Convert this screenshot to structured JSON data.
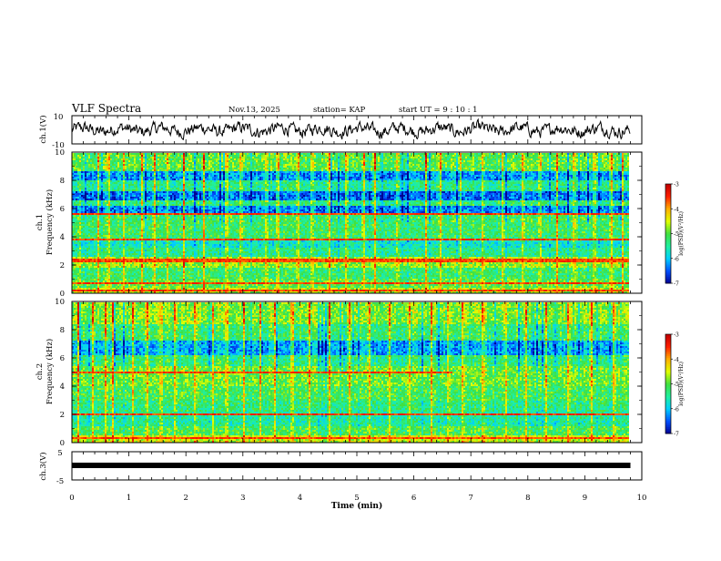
{
  "header": {
    "title": "VLF Spectra",
    "date": "Nov.13, 2025",
    "station": "station= KAP",
    "start": "start  UT =   9  : 10 : 1"
  },
  "chart_data": {
    "type": "heatmap",
    "xlabel": "Time  (min)",
    "xlim": [
      0,
      10
    ],
    "xticks": [
      "0",
      "1",
      "2",
      "3",
      "4",
      "5",
      "6",
      "7",
      "8",
      "9",
      "10"
    ],
    "data_end_min": 9.8,
    "panels": [
      {
        "id": "ch1-waveform",
        "type": "line",
        "ylabel": "ch.1(V)",
        "ylim": [
          -10,
          10
        ],
        "yticks": [
          "10",
          "-10"
        ]
      },
      {
        "id": "ch1-spectrogram",
        "type": "heatmap",
        "ylabel_line1": "ch.1",
        "ylabel_line2": "Frequency  (kHz)",
        "ylim": [
          0,
          10
        ],
        "yticks": [
          "10",
          "8",
          "6",
          "4",
          "2",
          "0"
        ],
        "bands": [
          {
            "from": 0.0,
            "to": 0.4,
            "level": -4.6
          },
          {
            "from": 0.4,
            "to": 1.0,
            "level": -5.0
          },
          {
            "from": 1.0,
            "to": 1.8,
            "level": -5.2
          },
          {
            "from": 1.8,
            "to": 2.6,
            "level": -4.7
          },
          {
            "from": 2.6,
            "to": 3.2,
            "level": -5.4
          },
          {
            "from": 3.2,
            "to": 3.8,
            "level": -5.7
          },
          {
            "from": 3.8,
            "to": 5.6,
            "level": -5.2
          },
          {
            "from": 5.6,
            "to": 6.2,
            "level": -6.3
          },
          {
            "from": 6.2,
            "to": 6.6,
            "level": -5.3
          },
          {
            "from": 6.6,
            "to": 7.2,
            "level": -6.4
          },
          {
            "from": 7.2,
            "to": 8.0,
            "level": -5.4
          },
          {
            "from": 8.0,
            "to": 8.6,
            "level": -6.2
          },
          {
            "from": 8.6,
            "to": 10.0,
            "level": -5.0
          }
        ],
        "lines_khz": [
          0.25,
          0.7,
          2.2,
          2.35,
          3.8,
          5.6
        ],
        "bursts_min": [
          0.12,
          0.45,
          0.63,
          0.9,
          1.22,
          1.43,
          1.67,
          1.95,
          2.3,
          2.7,
          2.95,
          3.4,
          3.6,
          3.95,
          4.2,
          4.5,
          4.8,
          5.1,
          5.3,
          5.7,
          6.2,
          6.45,
          6.8,
          7.2,
          7.55,
          7.9,
          8.2,
          8.5,
          8.8,
          9.15,
          9.45,
          9.65
        ]
      },
      {
        "id": "ch2-spectrogram",
        "type": "heatmap",
        "ylabel_line1": "ch.2",
        "ylabel_line2": "Frequency  (kHz)",
        "ylim": [
          0,
          10
        ],
        "yticks": [
          "10",
          "8",
          "6",
          "4",
          "2",
          "0"
        ],
        "bands": [
          {
            "from": 0.0,
            "to": 0.5,
            "level": -4.5
          },
          {
            "from": 0.5,
            "to": 1.2,
            "level": -5.1
          },
          {
            "from": 1.2,
            "to": 2.2,
            "level": -5.5
          },
          {
            "from": 2.2,
            "to": 3.0,
            "level": -5.3
          },
          {
            "from": 3.0,
            "to": 4.0,
            "level": -5.1
          },
          {
            "from": 4.0,
            "to": 5.4,
            "level": -4.9
          },
          {
            "from": 5.4,
            "to": 6.2,
            "level": -5.3
          },
          {
            "from": 6.2,
            "to": 7.2,
            "level": -6.1
          },
          {
            "from": 7.2,
            "to": 8.4,
            "level": -5.2
          },
          {
            "from": 8.4,
            "to": 10.0,
            "level": -4.8
          }
        ],
        "lines_khz": [
          0.3,
          2.0,
          5.0
        ],
        "line_5khz_end_min": 6.65,
        "bursts_min": [
          0.1,
          0.35,
          0.58,
          0.7,
          1.05,
          1.3,
          1.55,
          1.8,
          2.15,
          2.45,
          2.7,
          3.0,
          3.3,
          3.55,
          3.85,
          4.15,
          4.5,
          4.85,
          5.2,
          5.55,
          5.9,
          6.3,
          6.6,
          6.85,
          7.2,
          7.6,
          7.95,
          8.3,
          8.7,
          9.1,
          9.5
        ]
      },
      {
        "id": "ch3-level",
        "type": "line",
        "ylabel": "ch.3(V)",
        "ylim": [
          -5,
          5
        ],
        "yticks": [
          "5",
          "-5"
        ],
        "level_v": 0
      }
    ],
    "colorbar": {
      "label": "log(PSD)(V²/Hz)",
      "range": [
        -7,
        -3
      ],
      "ticks": [
        "-3",
        "-4",
        "-5",
        "-6",
        "-7"
      ],
      "colors": [
        "#000090",
        "#0050ff",
        "#00d0ff",
        "#20f0a0",
        "#40e040",
        "#e0ff00",
        "#ffb000",
        "#ff2000",
        "#c00000"
      ]
    }
  }
}
